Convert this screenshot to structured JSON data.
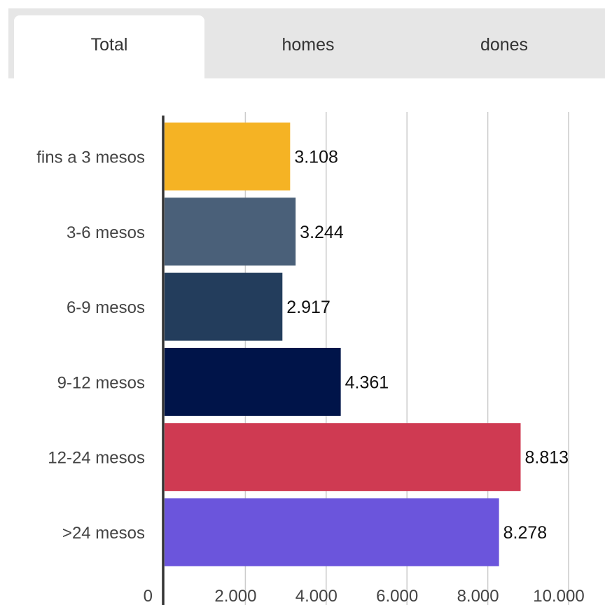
{
  "tabs": [
    {
      "label": "Total",
      "active": true
    },
    {
      "label": "homes",
      "active": false
    },
    {
      "label": "dones",
      "active": false
    }
  ],
  "chart_data": {
    "type": "bar",
    "orientation": "horizontal",
    "categories": [
      "fins a 3 mesos",
      "3-6 mesos",
      "6-9 mesos",
      "9-12 mesos",
      "12-24 mesos",
      ">24 mesos"
    ],
    "values": [
      3108,
      3244,
      2917,
      4361,
      8813,
      8278
    ],
    "value_labels": [
      "3.108",
      "3.244",
      "2.917",
      "4.361",
      "8.813",
      "8.278"
    ],
    "bar_colors": [
      "#f5b324",
      "#4a6079",
      "#233d5c",
      "#001449",
      "#cf3a52",
      "#6b55dc"
    ],
    "xticks": [
      "0",
      "2.000",
      "4.000",
      "6.000",
      "8.000",
      "10.000"
    ],
    "xtick_values": [
      0,
      2000,
      4000,
      6000,
      8000,
      10000
    ],
    "xlim": [
      0,
      10000
    ],
    "grid": true,
    "title": "",
    "xlabel": "",
    "ylabel": ""
  }
}
